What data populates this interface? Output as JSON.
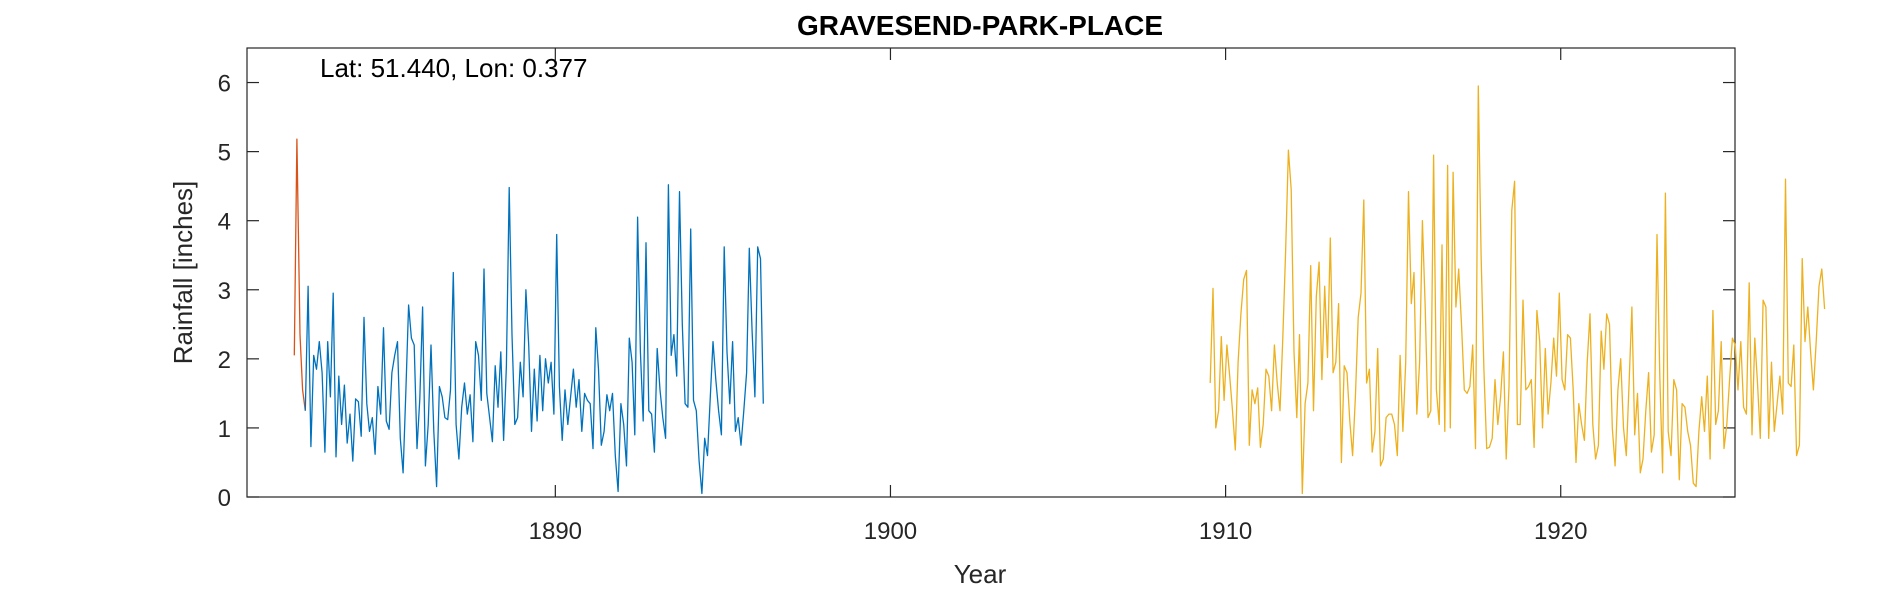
{
  "chart_data": {
    "type": "line",
    "title": "GRAVESEND-PARK-PLACE",
    "xlabel": "Year",
    "ylabel": "Rainfall [inches]",
    "annotation": "Lat: 51.440, Lon: 0.377",
    "xlim": [
      1880.8,
      1925.2
    ],
    "ylim": [
      0,
      6.5
    ],
    "xticks": [
      1890,
      1900,
      1910,
      1920
    ],
    "yticks": [
      0,
      1,
      2,
      3,
      4,
      5,
      6
    ],
    "grid": false,
    "legend": "none",
    "colors": {
      "axis": "#262626",
      "series_1": "#d95319",
      "series_2": "#0072bd",
      "series_3": "#edb120"
    },
    "series": [
      {
        "color": "#d95319",
        "x": [
          1882.21,
          1882.29,
          1882.38,
          1882.46,
          1882.54
        ],
        "y": [
          2.05,
          5.18,
          2.35,
          1.55,
          1.25
        ]
      },
      {
        "color": "#0072bd",
        "start": 1882.54,
        "step": 0.08333,
        "values": [
          1.25,
          3.05,
          0.73,
          2.05,
          1.85,
          2.25,
          1.8,
          0.65,
          2.25,
          1.45,
          2.95,
          0.58,
          1.75,
          1.05,
          1.62,
          0.78,
          1.2,
          0.52,
          1.42,
          1.38,
          0.88,
          2.6,
          1.35,
          0.95,
          1.15,
          0.62,
          1.6,
          1.2,
          2.45,
          1.1,
          0.98,
          1.8,
          2.05,
          2.25,
          0.85,
          0.35,
          1.55,
          2.78,
          2.3,
          2.2,
          0.7,
          1.42,
          2.75,
          0.45,
          1.05,
          2.2,
          0.95,
          0.15,
          1.6,
          1.45,
          1.15,
          1.12,
          1.55,
          3.25,
          1.05,
          0.55,
          1.3,
          1.65,
          1.2,
          1.48,
          0.8,
          2.25,
          2.05,
          1.4,
          3.3,
          1.5,
          1.15,
          0.8,
          1.9,
          1.3,
          2.1,
          0.82,
          1.9,
          4.48,
          2.35,
          1.05,
          1.15,
          1.95,
          1.45,
          3.0,
          2.2,
          0.95,
          1.85,
          1.1,
          2.05,
          1.25,
          2.0,
          1.65,
          1.95,
          1.2,
          3.8,
          1.6,
          0.82,
          1.55,
          1.05,
          1.45,
          1.85,
          1.3,
          1.7,
          0.95,
          1.5,
          1.4,
          1.35,
          0.7,
          2.45,
          1.85,
          0.75,
          0.95,
          1.48,
          1.25,
          1.5,
          0.6,
          0.08,
          1.35,
          1.05,
          0.45,
          2.3,
          1.95,
          0.9,
          4.05,
          2.1,
          1.1,
          3.68,
          1.25,
          1.2,
          0.65,
          2.15,
          1.55,
          1.15,
          0.85,
          4.52,
          2.05,
          2.35,
          1.75,
          4.42,
          2.5,
          1.35,
          1.3,
          3.88,
          1.4,
          1.25,
          0.52,
          0.05,
          0.85,
          0.6,
          1.45,
          2.25,
          1.7,
          1.25,
          0.9,
          3.62,
          2.1,
          1.35,
          2.25,
          0.95,
          1.15,
          0.75,
          1.25,
          1.8,
          3.6,
          2.4,
          1.45,
          3.62,
          3.45,
          1.35
        ]
      },
      {
        "color": "#edb120",
        "start": 1909.54,
        "step": 0.08333,
        "values": [
          1.65,
          3.02,
          1.0,
          1.25,
          2.32,
          1.4,
          2.2,
          1.75,
          1.25,
          0.68,
          1.95,
          2.65,
          3.15,
          3.28,
          0.75,
          1.55,
          1.35,
          1.58,
          0.72,
          1.05,
          1.85,
          1.75,
          1.25,
          2.2,
          1.65,
          1.25,
          2.3,
          3.55,
          5.02,
          4.45,
          2.1,
          1.15,
          2.35,
          0.05,
          1.35,
          1.65,
          3.35,
          1.25,
          2.9,
          3.4,
          1.7,
          3.05,
          2.02,
          3.75,
          1.8,
          1.95,
          2.8,
          0.5,
          1.9,
          1.8,
          1.1,
          0.6,
          1.45,
          2.6,
          2.95,
          4.3,
          1.65,
          1.85,
          0.65,
          0.95,
          2.15,
          0.45,
          0.55,
          1.15,
          1.2,
          1.2,
          1.05,
          0.6,
          2.05,
          0.95,
          1.95,
          4.42,
          2.8,
          3.25,
          1.2,
          1.95,
          4.0,
          2.75,
          1.15,
          1.25,
          4.95,
          1.55,
          1.05,
          3.65,
          0.95,
          4.8,
          1.0,
          4.7,
          2.75,
          3.3,
          2.5,
          1.55,
          1.5,
          1.6,
          2.2,
          0.7,
          5.95,
          3.5,
          1.85,
          0.7,
          0.72,
          0.85,
          1.7,
          1.05,
          1.45,
          2.1,
          0.55,
          1.6,
          4.15,
          4.57,
          1.05,
          1.05,
          2.85,
          1.55,
          1.6,
          1.7,
          0.72,
          2.7,
          2.25,
          1.0,
          2.15,
          1.2,
          1.65,
          2.3,
          1.75,
          2.95,
          1.7,
          1.55,
          2.35,
          2.3,
          1.55,
          0.5,
          1.35,
          1.05,
          0.82,
          1.95,
          2.65,
          1.05,
          0.55,
          0.75,
          2.4,
          1.85,
          2.65,
          2.5,
          1.0,
          0.45,
          1.55,
          2.0,
          1.0,
          0.6,
          1.65,
          2.75,
          0.9,
          1.5,
          0.35,
          0.55,
          1.25,
          1.8,
          0.65,
          0.9,
          3.8,
          1.75,
          0.35,
          4.4,
          0.95,
          0.6,
          1.7,
          1.55,
          0.25,
          1.35,
          1.3,
          0.95,
          0.75,
          0.2,
          0.15,
          0.95,
          1.45,
          0.95,
          1.75,
          0.55,
          2.7,
          1.05,
          1.25,
          2.25,
          0.7,
          1.05,
          1.7,
          2.3,
          2.2,
          1.55,
          2.25,
          1.3,
          1.2,
          3.1,
          0.9,
          2.3,
          1.65,
          0.85,
          2.85,
          2.75,
          0.85,
          1.95,
          0.95,
          1.35,
          1.75,
          1.2,
          4.6,
          1.65,
          1.6,
          2.2,
          0.6,
          0.75,
          3.45,
          2.25,
          2.75,
          2.1,
          1.55,
          2.25,
          3.05,
          3.3,
          2.72
        ]
      }
    ]
  }
}
